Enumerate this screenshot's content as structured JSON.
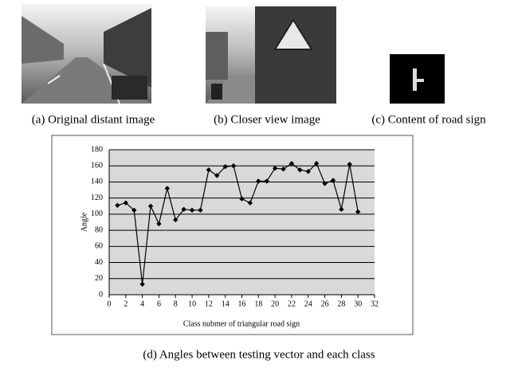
{
  "figure": {
    "captions": [
      "(a) Original distant image",
      "(b) Closer view image",
      "(c) Content of road sign",
      "(d) Angles between testing vector and each class"
    ]
  },
  "chart_data": {
    "type": "line",
    "x_label": "Class nubmer of triangular road sign",
    "y_label": "Angle",
    "x": [
      1,
      2,
      3,
      4,
      5,
      6,
      7,
      8,
      9,
      10,
      11,
      12,
      13,
      14,
      15,
      16,
      17,
      18,
      19,
      20,
      21,
      22,
      23,
      24,
      25,
      26,
      27,
      28,
      29,
      30
    ],
    "values": [
      111,
      114,
      105,
      13,
      110,
      88,
      132,
      93,
      106,
      105,
      105,
      155,
      148,
      159,
      160,
      119,
      114,
      141,
      141,
      157,
      156,
      163,
      155,
      153,
      163,
      138,
      142,
      106,
      162,
      103
    ],
    "color": "#000000",
    "xlim": [
      0,
      32
    ],
    "xticks": [
      0,
      2,
      4,
      6,
      8,
      10,
      12,
      14,
      16,
      18,
      20,
      22,
      24,
      26,
      28,
      30,
      32
    ],
    "ylim": [
      0,
      180
    ],
    "yticks": [
      0,
      20,
      40,
      60,
      80,
      100,
      120,
      140,
      160,
      180
    ],
    "grid": true
  }
}
